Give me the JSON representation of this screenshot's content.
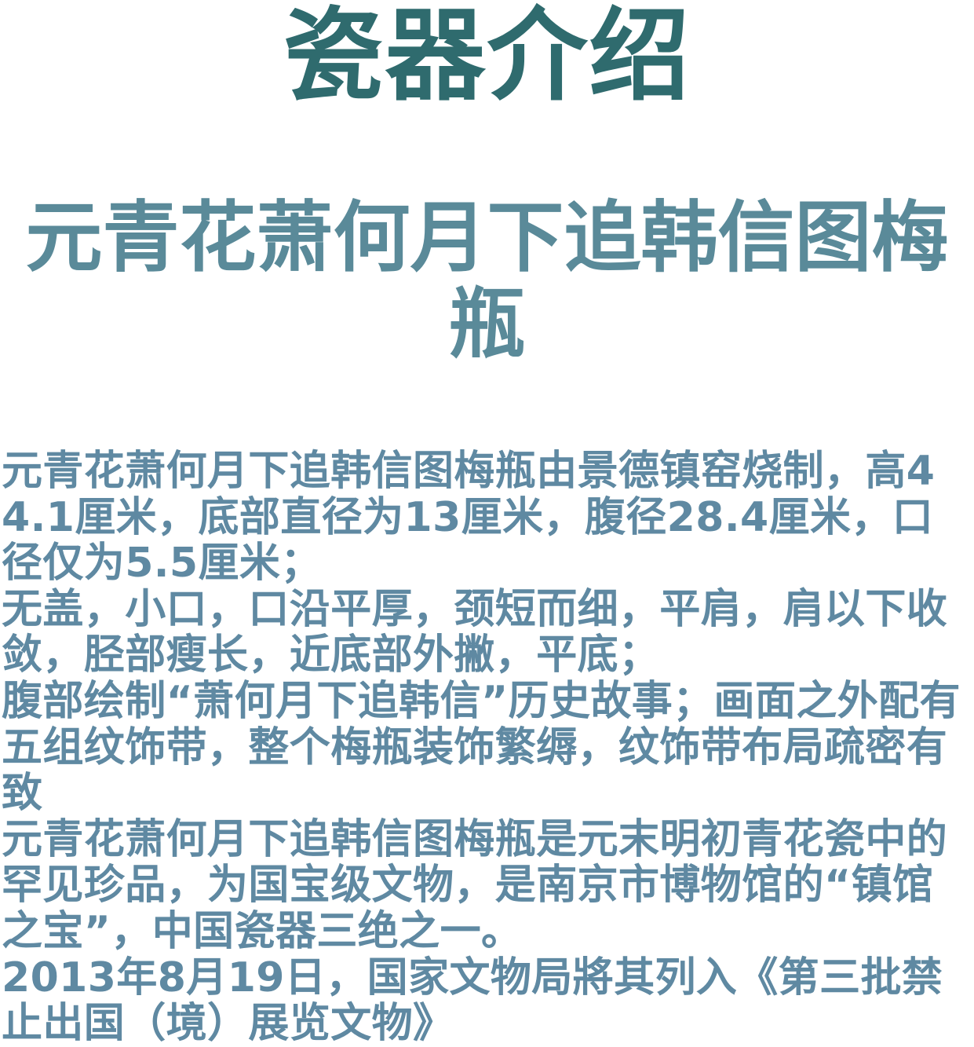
{
  "title": "瓷器介绍",
  "subtitle": "元青花萧何月下追韩信图梅瓶",
  "paragraphs": [
    "元青花萧何月下追韩信图梅瓶由景德镇窑烧制，高44.1厘米，底部直径为13厘米，腹径28.4厘米，口径仅为5.5厘米；",
    "无盖，小口，口沿平厚，颈短而细，平肩，肩以下收敛，胫部瘦长，近底部外撇，平底；",
    "腹部绘制“萧何月下追韩信”历史故事；画面之外配有五组纹饰带，整个梅瓶装饰繁缛，纹饰带布局疏密有致",
    "元青花萧何月下追韩信图梅瓶是元末明初青花瓷中的罕见珍品，为国宝级文物，是南京市博物馆的“镇馆之宝”，中国瓷器三绝之一。",
    "2013年8月19日，国家文物局將其列入《第三批禁止出国（境）展览文物》"
  ],
  "colors": {
    "title": "#2f6b6e",
    "subtitle": "#5a8a99",
    "body": "#5f89a2",
    "background": "#ffffff"
  }
}
